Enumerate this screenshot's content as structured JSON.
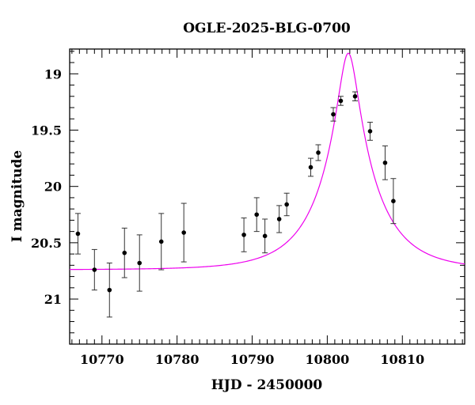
{
  "chart_data": {
    "type": "scatter",
    "title": "OGLE-2025-BLG-0700",
    "xlabel": "HJD - 2450000",
    "ylabel": "I magnitude",
    "xlim": [
      10765.7,
      10818.3
    ],
    "ylim": [
      21.4,
      18.78
    ],
    "y_inverted": true,
    "grid": false,
    "x_ticks": [
      10770,
      10780,
      10790,
      10800,
      10810
    ],
    "x_tick_labels": [
      "10770",
      "10780",
      "10790",
      "10800",
      "10810"
    ],
    "y_ticks": [
      19,
      19.5,
      20,
      20.5,
      21
    ],
    "y_tick_labels": [
      "19",
      "19.5",
      "20",
      "20.5",
      "21"
    ],
    "series": [
      {
        "type": "errorbar",
        "color": "#000000",
        "points": [
          {
            "x": 10766.8,
            "y": 20.42,
            "err": 0.18
          },
          {
            "x": 10769.0,
            "y": 20.74,
            "err": 0.18
          },
          {
            "x": 10771.0,
            "y": 20.92,
            "err": 0.24
          },
          {
            "x": 10773.0,
            "y": 20.59,
            "err": 0.22
          },
          {
            "x": 10775.0,
            "y": 20.68,
            "err": 0.25
          },
          {
            "x": 10777.9,
            "y": 20.49,
            "err": 0.25
          },
          {
            "x": 10780.9,
            "y": 20.41,
            "err": 0.26
          },
          {
            "x": 10788.9,
            "y": 20.43,
            "err": 0.15
          },
          {
            "x": 10790.6,
            "y": 20.25,
            "err": 0.15
          },
          {
            "x": 10791.7,
            "y": 20.44,
            "err": 0.15
          },
          {
            "x": 10793.6,
            "y": 20.29,
            "err": 0.12
          },
          {
            "x": 10794.6,
            "y": 20.16,
            "err": 0.1
          },
          {
            "x": 10797.8,
            "y": 19.83,
            "err": 0.08
          },
          {
            "x": 10798.8,
            "y": 19.7,
            "err": 0.07
          },
          {
            "x": 10800.8,
            "y": 19.36,
            "err": 0.06
          },
          {
            "x": 10801.8,
            "y": 19.24,
            "err": 0.04
          },
          {
            "x": 10803.7,
            "y": 19.2,
            "err": 0.04
          },
          {
            "x": 10805.7,
            "y": 19.51,
            "err": 0.08
          },
          {
            "x": 10807.7,
            "y": 19.79,
            "err": 0.15
          },
          {
            "x": 10808.8,
            "y": 20.13,
            "err": 0.2
          }
        ]
      },
      {
        "type": "line",
        "color": "#ee00ee",
        "model": {
          "base_mag": 20.74,
          "t0": 10802.8,
          "u0": 0.172,
          "tE": 7.2
        }
      }
    ]
  }
}
